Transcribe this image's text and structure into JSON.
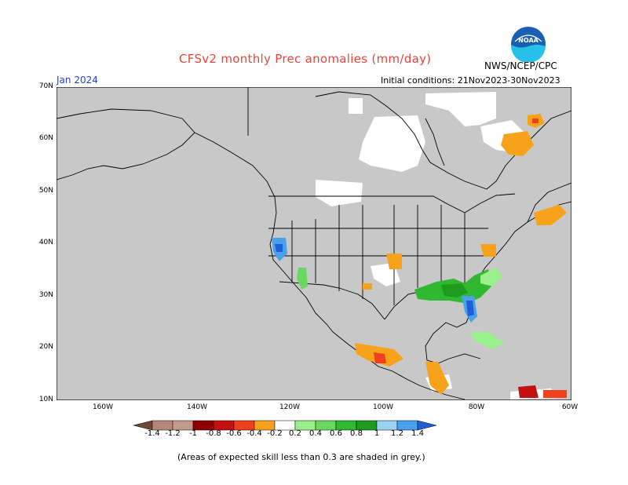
{
  "header": {
    "title": "CFSv2 monthly Prec anomalies (mm/day)",
    "agency": "NWS/NCEP/CPC",
    "month": "Jan 2024",
    "initial_conditions": "Initial conditions: 21Nov2023-30Nov2023",
    "logo_text": "NOAA"
  },
  "axes": {
    "lat_labels": [
      "70N",
      "60N",
      "50N",
      "40N",
      "30N",
      "20N",
      "10N"
    ],
    "lon_labels": [
      "160W",
      "140W",
      "120W",
      "100W",
      "80W",
      "60W"
    ]
  },
  "colorbar": {
    "labels": [
      "-1.4",
      "-1.2",
      "-1",
      "-0.8",
      "-0.6",
      "-0.4",
      "-0.2",
      "0.2",
      "0.4",
      "0.6",
      "0.8",
      "1",
      "1.2",
      "1.4"
    ],
    "colors": [
      "#6b4a3a",
      "#b58878",
      "#c09a8a",
      "#8c0000",
      "#c41010",
      "#ef3f1c",
      "#f7a21a",
      "#ffffff",
      "#9af08a",
      "#6ad860",
      "#30b830",
      "#1e9a1e",
      "#9ad2f2",
      "#4aa0ec",
      "#1e5fd8"
    ]
  },
  "map_colors": {
    "ocean_land_grey": "#c8c8c8",
    "no_anomaly": "#ffffff",
    "border": "#000000"
  },
  "footnote": "(Areas of expected skill less than 0.3 are shaded in grey.)"
}
